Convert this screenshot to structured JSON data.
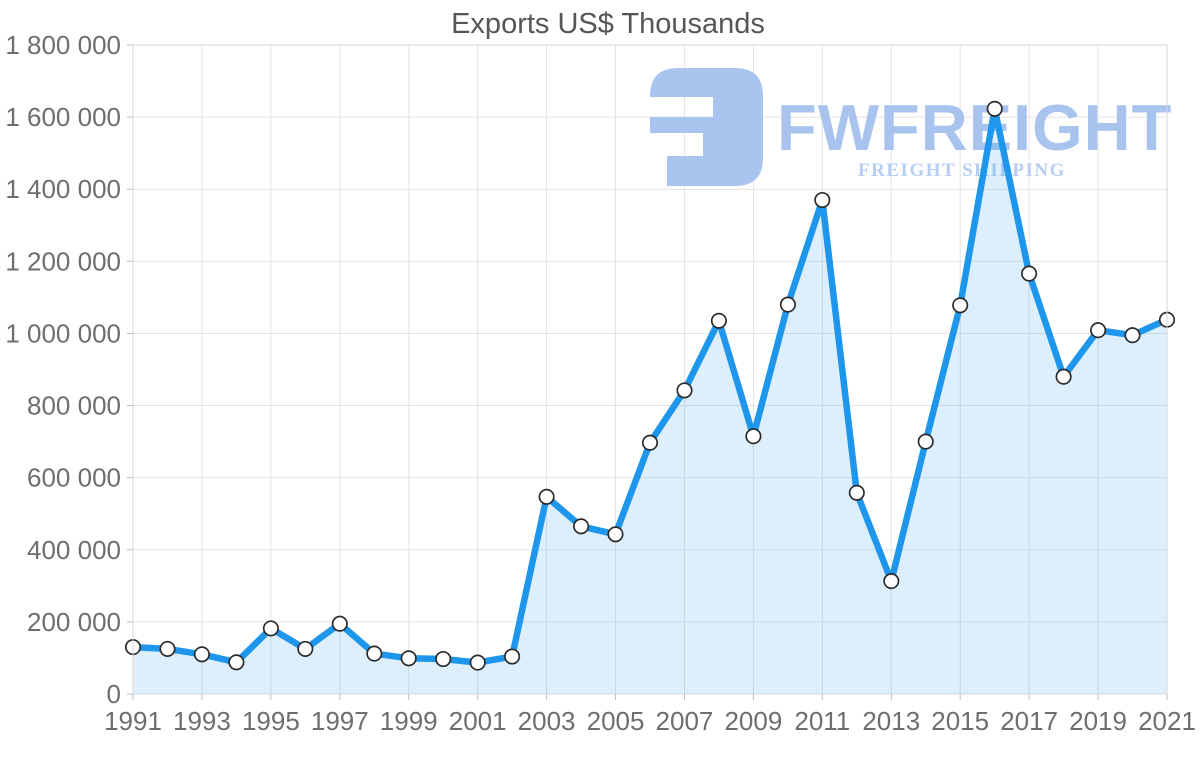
{
  "page": {
    "background": "#ffffff"
  },
  "watermark": {
    "brand": "FWFREIGHT",
    "tagline": "FREIGHT SHIPPING",
    "logo_icon": "fwfreight-logo-mark",
    "brand_color": "#a9c3ef",
    "tagline_color": "#b7cdf3",
    "logo_color": "#aac4f0"
  },
  "chart_data": {
    "type": "area",
    "title": "Exports US$ Thousands",
    "xlabel": "",
    "ylabel": "",
    "x": [
      1991,
      1992,
      1993,
      1994,
      1995,
      1996,
      1997,
      1998,
      1999,
      2000,
      2001,
      2002,
      2003,
      2004,
      2005,
      2006,
      2007,
      2008,
      2009,
      2010,
      2011,
      2012,
      2013,
      2014,
      2015,
      2016,
      2017,
      2018,
      2019,
      2020,
      2021
    ],
    "series": [
      {
        "name": "Exports US$ Thousands",
        "values": [
          130000,
          125000,
          110000,
          88000,
          182000,
          125000,
          195000,
          112000,
          99000,
          97000,
          87000,
          104000,
          547000,
          465000,
          443000,
          697000,
          842000,
          1035000,
          715000,
          1080000,
          1370000,
          558000,
          313000,
          700000,
          1078000,
          1623000,
          1166000,
          880000,
          1009000,
          995000,
          1038000
        ]
      }
    ],
    "ylim": [
      0,
      1800000
    ],
    "y_tick_step": 200000,
    "y_tick_labels": [
      "0",
      "200 000",
      "400 000",
      "600 000",
      "800 000",
      "1 000 000",
      "1 200 000",
      "1 400 000",
      "1 600 000",
      "1 800 000"
    ],
    "x_tick_labels": [
      "1991",
      "1993",
      "1995",
      "1997",
      "1999",
      "2001",
      "2003",
      "2005",
      "2007",
      "2009",
      "2011",
      "2013",
      "2015",
      "2017",
      "2019",
      "2021"
    ],
    "grid": true,
    "legend": "none",
    "colors": {
      "line": "#1e96ec",
      "fill": "rgba(30,150,236,0.15)",
      "marker_fill": "#ffffff",
      "marker_stroke": "#2b2b2b",
      "gridline": "#e4e4e4",
      "border": "#d5d5d5",
      "tick": "#bdbdbd",
      "axis_text": "#6e6e6e",
      "title_text": "#565656"
    }
  }
}
